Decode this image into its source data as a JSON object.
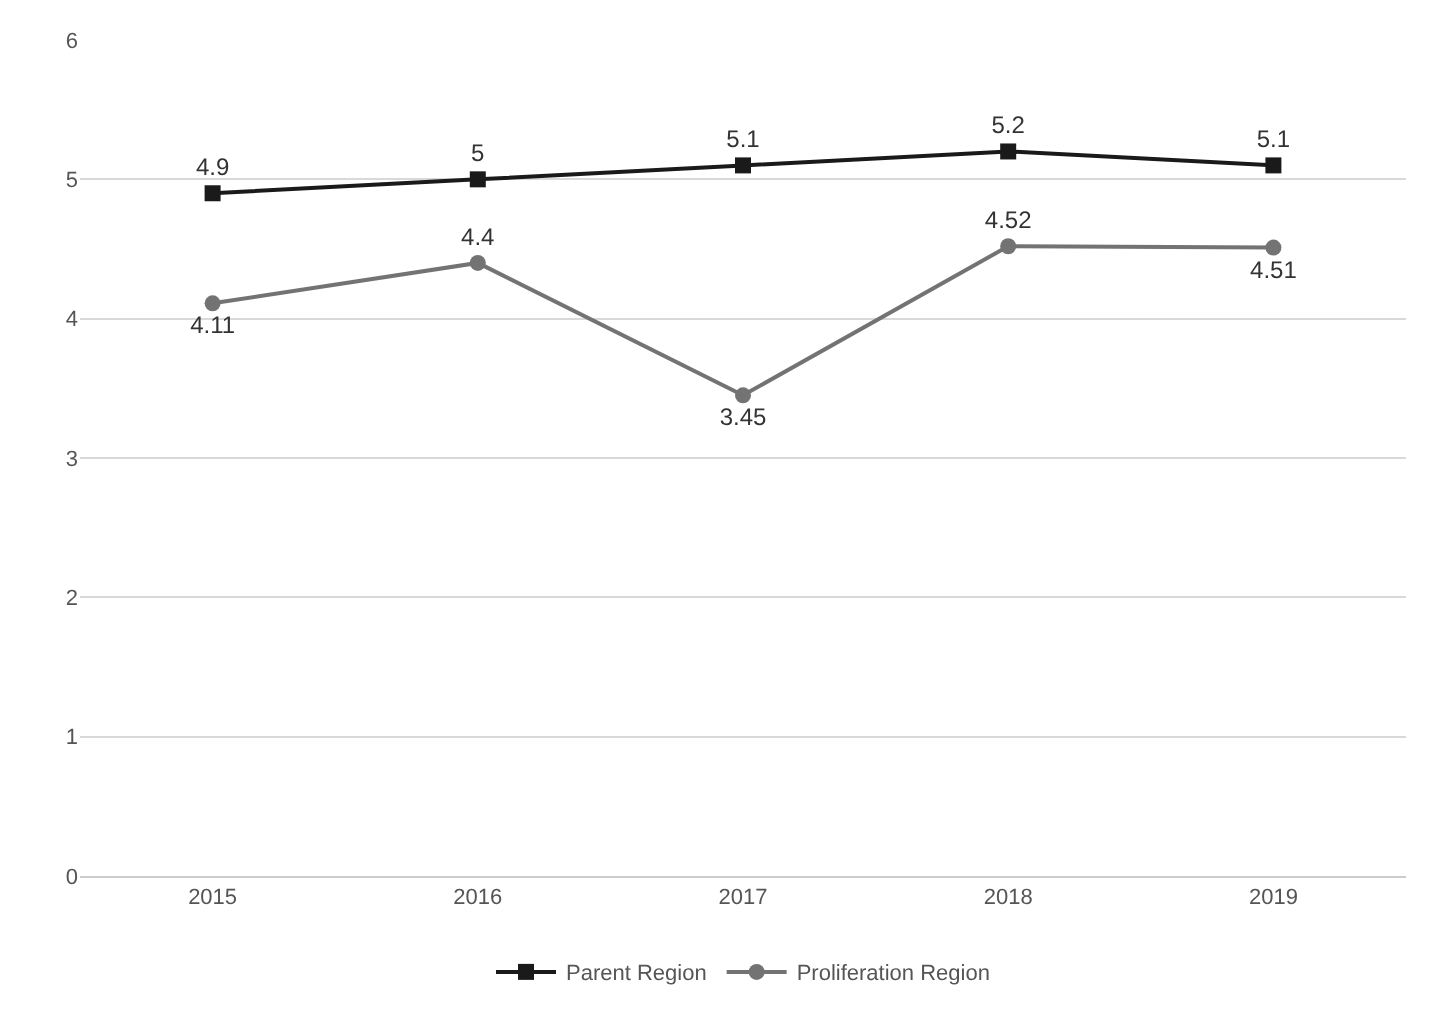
{
  "chart_data": {
    "type": "line",
    "categories": [
      "2015",
      "2016",
      "2017",
      "2018",
      "2019"
    ],
    "series": [
      {
        "name": "Parent Region",
        "color": "#1a1a1a",
        "marker": "square",
        "values": [
          4.9,
          5,
          5.1,
          5.2,
          5.1
        ],
        "value_labels": [
          "4.9",
          "5",
          "5.1",
          "5.2",
          "5.1"
        ]
      },
      {
        "name": "Proliferation Region",
        "color": "#737373",
        "marker": "circle",
        "values": [
          4.11,
          4.4,
          3.45,
          4.52,
          4.51
        ],
        "value_labels": [
          "4.11",
          "4.4",
          "3.45",
          "4.52",
          "4.51"
        ]
      }
    ],
    "ylim": [
      0,
      6
    ],
    "yticks": [
      0,
      1,
      2,
      3,
      4,
      5,
      6
    ],
    "grid": "y",
    "legend": "bottom",
    "line_style": "solid"
  }
}
